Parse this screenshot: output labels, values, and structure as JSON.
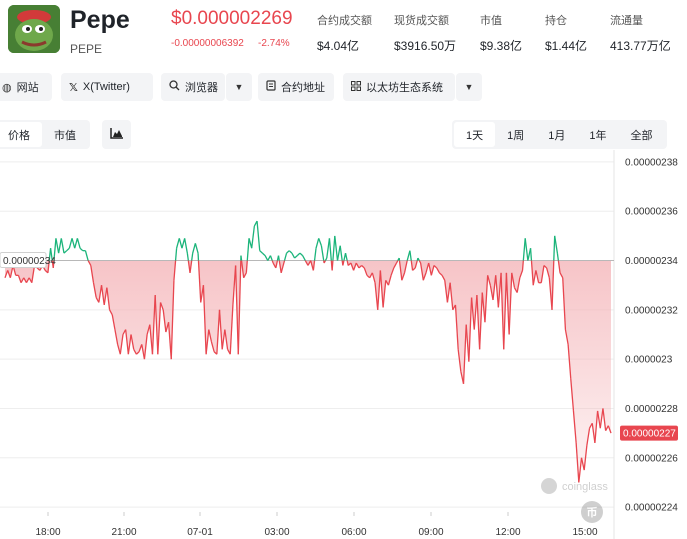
{
  "coin": {
    "name": "Pepe",
    "symbol": "PEPE",
    "price": "$0.000002269",
    "change_abs": "-0.00000006392",
    "change_pct": "-2.74%",
    "logo_icon": "pepe-frog-logo"
  },
  "stats": [
    {
      "label": "合约成交额",
      "value": "$4.04亿"
    },
    {
      "label": "现货成交额",
      "value": "$3916.50万"
    },
    {
      "label": "市值",
      "value": "$9.38亿"
    },
    {
      "label": "持仓",
      "value": "$1.44亿"
    },
    {
      "label": "流通量",
      "value": "413.77万亿"
    }
  ],
  "links": {
    "website": "网站",
    "twitter": "X(Twitter)",
    "explorer": "浏览器",
    "contract": "合约地址",
    "ecosystem": "以太坊生态系统"
  },
  "chart_tabs": {
    "price": "价格",
    "market_cap": "市值",
    "active": "价格"
  },
  "ranges": [
    "1天",
    "1周",
    "1月",
    "1年",
    "全部"
  ],
  "active_range": "1天",
  "watermark": "coinglass",
  "colors": {
    "up": "#1bb47a",
    "down": "#e8464f",
    "ref_line": "#b8b8b8",
    "fill": "#f4b4b8"
  },
  "chart_data": {
    "type": "line",
    "title": "",
    "xlabel": "",
    "ylabel": "",
    "x_ticks": [
      "18:00",
      "21:00",
      "07-01",
      "03:00",
      "06:00",
      "09:00",
      "12:00",
      "15:00"
    ],
    "y_ticks": [
      "0.00000238",
      "0.00000236",
      "0.00000234",
      "0.00000232",
      "0.0000023",
      "0.00000228",
      "0.00000226",
      "0.00000224"
    ],
    "ylim": [
      2.238e-06,
      2.382e-06
    ],
    "reference_value": 2.34e-06,
    "reference_label": "0.00000234",
    "current_value": 2.27e-06,
    "current_label": "0.00000227",
    "grid": true,
    "series": [
      {
        "values": [
          2.333,
          2.336,
          2.333,
          2.338,
          2.334,
          2.334,
          2.331,
          2.333,
          2.331,
          2.333,
          2.331,
          2.338,
          2.337,
          2.336,
          2.338,
          2.336,
          2.335,
          2.345,
          2.337,
          2.349,
          2.343,
          2.349,
          2.343,
          2.344,
          2.345,
          2.349,
          2.345,
          2.349,
          2.345,
          2.344,
          2.344,
          2.34,
          2.338,
          2.331,
          2.325,
          2.323,
          2.33,
          2.322,
          2.329,
          2.32,
          2.318,
          2.312,
          2.306,
          2.302,
          2.31,
          2.312,
          2.302,
          2.31,
          2.304,
          2.302,
          2.303,
          2.306,
          2.3,
          2.31,
          2.314,
          2.302,
          2.326,
          2.302,
          2.323,
          2.32,
          2.311,
          2.315,
          2.3,
          2.332,
          2.345,
          2.349,
          2.345,
          2.349,
          2.343,
          2.335,
          2.343,
          2.347,
          2.343,
          2.323,
          2.33,
          2.302,
          2.312,
          2.307,
          2.303,
          2.302,
          2.32,
          2.304,
          2.312,
          2.304,
          2.302,
          2.322,
          2.338,
          2.302,
          2.342,
          2.333,
          2.335,
          2.349,
          2.345,
          2.354,
          2.356,
          2.344,
          2.343,
          2.342,
          2.34,
          2.342,
          2.339,
          2.337,
          2.342,
          2.335,
          2.339,
          2.343,
          2.344,
          2.343,
          2.341,
          2.342,
          2.343,
          2.342,
          2.34,
          2.338,
          2.34,
          2.336,
          2.345,
          2.349,
          2.346,
          2.339,
          2.341,
          2.349,
          2.336,
          2.35,
          2.34,
          2.346,
          2.338,
          2.343,
          2.338,
          2.339,
          2.336,
          2.339,
          2.337,
          2.338,
          2.337,
          2.334,
          2.333,
          2.335,
          2.331,
          2.32,
          2.336,
          2.321,
          2.332,
          2.33,
          2.334,
          2.337,
          2.339,
          2.341,
          2.332,
          2.335,
          2.34,
          2.344,
          2.336,
          2.337,
          2.341,
          2.339,
          2.332,
          2.335,
          2.339,
          2.334,
          2.338,
          2.337,
          2.335,
          2.334,
          2.332,
          2.323,
          2.331,
          2.32,
          2.322,
          2.304,
          2.295,
          2.29,
          2.314,
          2.299,
          2.325,
          2.312,
          2.326,
          2.304,
          2.327,
          2.315,
          2.334,
          2.33,
          2.324,
          2.334,
          2.321,
          2.335,
          2.304,
          2.335,
          2.31,
          2.335,
          2.329,
          2.327,
          2.333,
          2.336,
          2.349,
          2.34,
          2.345,
          2.33,
          2.336,
          2.331,
          2.331,
          2.338,
          2.337,
          2.333,
          2.32,
          2.35,
          2.343,
          2.335,
          2.333,
          2.312,
          2.306,
          2.292,
          2.279,
          2.266,
          2.25,
          2.26,
          2.255,
          2.265,
          2.272,
          2.274,
          2.266,
          2.279,
          2.272,
          2.28,
          2.271,
          2.273,
          2.27
        ]
      }
    ]
  }
}
